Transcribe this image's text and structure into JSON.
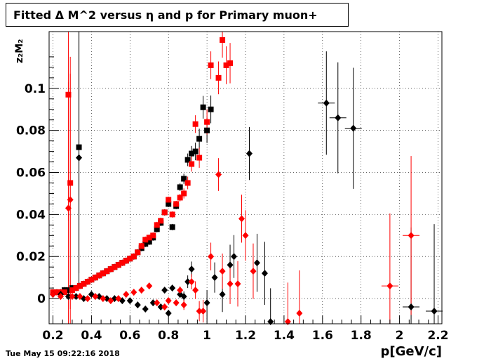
{
  "title": "Fitted Δ M^2 versus η and p for Primary muon+",
  "timestamp": "Tue May 15 09:22:16 2018",
  "chart_data": {
    "type": "scatter",
    "xlabel": "p[GeV/c]",
    "ylabel": "z₂M₂",
    "xlim": [
      0.18,
      2.22
    ],
    "ylim": [
      -0.012,
      0.127
    ],
    "grid": true,
    "x_ticks": [
      "0.2",
      "0.4",
      "0.6",
      "0.8",
      "1",
      "1.2",
      "1.4",
      "1.6",
      "1.8",
      "2",
      "2.2"
    ],
    "y_ticks": [
      "0",
      "0.02",
      "0.04",
      "0.06",
      "0.08",
      "0.1"
    ],
    "series": [
      {
        "marker": "square",
        "color": "#000000",
        "points": [
          [
            0.2,
            0.003
          ],
          [
            0.22,
            0.003
          ],
          [
            0.24,
            0.003
          ],
          [
            0.26,
            0.004
          ],
          [
            0.28,
            0.004
          ],
          [
            0.3,
            0.005
          ],
          [
            0.32,
            0.005
          ],
          [
            0.335,
            0.072
          ],
          [
            0.34,
            0.006
          ],
          [
            0.36,
            0.007
          ],
          [
            0.38,
            0.008
          ],
          [
            0.4,
            0.009
          ],
          [
            0.42,
            0.01
          ],
          [
            0.44,
            0.011
          ],
          [
            0.46,
            0.012
          ],
          [
            0.48,
            0.013
          ],
          [
            0.5,
            0.014
          ],
          [
            0.52,
            0.015
          ],
          [
            0.54,
            0.016
          ],
          [
            0.56,
            0.017
          ],
          [
            0.58,
            0.018
          ],
          [
            0.6,
            0.019
          ],
          [
            0.62,
            0.02
          ],
          [
            0.64,
            0.022
          ],
          [
            0.66,
            0.024
          ],
          [
            0.68,
            0.026
          ],
          [
            0.7,
            0.027
          ],
          [
            0.72,
            0.029
          ],
          [
            0.74,
            0.033
          ],
          [
            0.76,
            0.036
          ],
          [
            0.78,
            0.041
          ],
          [
            0.8,
            0.045
          ],
          [
            0.82,
            0.034
          ],
          [
            0.84,
            0.044
          ],
          [
            0.86,
            0.053
          ],
          [
            0.88,
            0.057
          ],
          [
            0.9,
            0.066
          ],
          [
            0.92,
            0.069
          ],
          [
            0.94,
            0.07
          ],
          [
            0.96,
            0.076
          ],
          [
            0.98,
            0.091
          ],
          [
            1.0,
            0.08
          ],
          [
            1.02,
            0.09
          ]
        ]
      },
      {
        "marker": "square",
        "color": "#ff0000",
        "points": [
          [
            0.2,
            0.003
          ],
          [
            0.22,
            0.003
          ],
          [
            0.24,
            0.003
          ],
          [
            0.26,
            0.003
          ],
          [
            0.28,
            0.097
          ],
          [
            0.29,
            0.055
          ],
          [
            0.3,
            0.004
          ],
          [
            0.32,
            0.005
          ],
          [
            0.34,
            0.006
          ],
          [
            0.36,
            0.007
          ],
          [
            0.38,
            0.008
          ],
          [
            0.4,
            0.009
          ],
          [
            0.42,
            0.01
          ],
          [
            0.44,
            0.011
          ],
          [
            0.46,
            0.012
          ],
          [
            0.48,
            0.013
          ],
          [
            0.5,
            0.014
          ],
          [
            0.52,
            0.015
          ],
          [
            0.54,
            0.016
          ],
          [
            0.56,
            0.017
          ],
          [
            0.58,
            0.018
          ],
          [
            0.6,
            0.019
          ],
          [
            0.62,
            0.02
          ],
          [
            0.64,
            0.022
          ],
          [
            0.66,
            0.025
          ],
          [
            0.68,
            0.028
          ],
          [
            0.7,
            0.029
          ],
          [
            0.72,
            0.03
          ],
          [
            0.74,
            0.035
          ],
          [
            0.76,
            0.037
          ],
          [
            0.78,
            0.041
          ],
          [
            0.8,
            0.047
          ],
          [
            0.82,
            0.04
          ],
          [
            0.84,
            0.045
          ],
          [
            0.86,
            0.048
          ],
          [
            0.88,
            0.05
          ],
          [
            0.9,
            0.055
          ],
          [
            0.92,
            0.064
          ],
          [
            0.94,
            0.083
          ],
          [
            0.96,
            0.067
          ],
          [
            1.0,
            0.084
          ],
          [
            1.02,
            0.111
          ],
          [
            1.06,
            0.105
          ],
          [
            1.08,
            0.123
          ],
          [
            1.1,
            0.111
          ],
          [
            1.12,
            0.112
          ]
        ]
      },
      {
        "marker": "diamond",
        "color": "#000000",
        "points": [
          [
            0.2,
            0.002
          ],
          [
            0.24,
            0.002
          ],
          [
            0.28,
            0.001
          ],
          [
            0.32,
            0.001
          ],
          [
            0.335,
            0.067
          ],
          [
            0.36,
            0.0
          ],
          [
            0.4,
            0.002
          ],
          [
            0.44,
            0.001
          ],
          [
            0.48,
            0.0
          ],
          [
            0.52,
            0.0
          ],
          [
            0.56,
            -0.001
          ],
          [
            0.6,
            -0.001
          ],
          [
            0.64,
            -0.003
          ],
          [
            0.68,
            -0.005
          ],
          [
            0.72,
            -0.002
          ],
          [
            0.76,
            -0.004
          ],
          [
            0.78,
            0.004
          ],
          [
            0.8,
            -0.007
          ],
          [
            0.82,
            0.005
          ],
          [
            0.86,
            0.002
          ],
          [
            0.88,
            0.001
          ],
          [
            0.9,
            0.008
          ],
          [
            0.92,
            0.014
          ],
          [
            1.0,
            -0.002
          ],
          [
            1.04,
            0.01
          ],
          [
            1.08,
            0.002
          ],
          [
            1.12,
            0.016
          ],
          [
            1.14,
            0.02
          ],
          [
            1.22,
            0.069
          ],
          [
            1.26,
            0.017
          ],
          [
            1.3,
            0.012
          ],
          [
            1.33,
            -0.011
          ],
          [
            1.62,
            0.093
          ],
          [
            1.68,
            0.086
          ],
          [
            1.76,
            0.081
          ],
          [
            2.06,
            -0.004
          ],
          [
            2.18,
            -0.006
          ]
        ]
      },
      {
        "marker": "diamond",
        "color": "#ff0000",
        "points": [
          [
            0.2,
            0.002
          ],
          [
            0.24,
            0.001
          ],
          [
            0.28,
            0.043
          ],
          [
            0.29,
            0.047
          ],
          [
            0.3,
            0.001
          ],
          [
            0.34,
            0.001
          ],
          [
            0.38,
            0.0
          ],
          [
            0.42,
            0.001
          ],
          [
            0.46,
            0.0
          ],
          [
            0.5,
            -0.001
          ],
          [
            0.54,
            0.0
          ],
          [
            0.58,
            0.002
          ],
          [
            0.62,
            0.003
          ],
          [
            0.66,
            0.004
          ],
          [
            0.7,
            0.006
          ],
          [
            0.74,
            -0.002
          ],
          [
            0.78,
            -0.004
          ],
          [
            0.8,
            -0.001
          ],
          [
            0.84,
            -0.002
          ],
          [
            0.86,
            0.004
          ],
          [
            0.88,
            -0.003
          ],
          [
            0.92,
            0.008
          ],
          [
            0.94,
            0.004
          ],
          [
            0.96,
            -0.006
          ],
          [
            0.98,
            -0.006
          ],
          [
            1.02,
            0.02
          ],
          [
            1.06,
            0.059
          ],
          [
            1.08,
            0.013
          ],
          [
            1.12,
            0.007
          ],
          [
            1.16,
            0.007
          ],
          [
            1.18,
            0.038
          ],
          [
            1.2,
            0.03
          ],
          [
            1.24,
            0.013
          ],
          [
            1.42,
            -0.011
          ],
          [
            1.48,
            -0.007
          ],
          [
            1.95,
            0.006
          ],
          [
            2.06,
            0.03
          ]
        ]
      }
    ]
  }
}
